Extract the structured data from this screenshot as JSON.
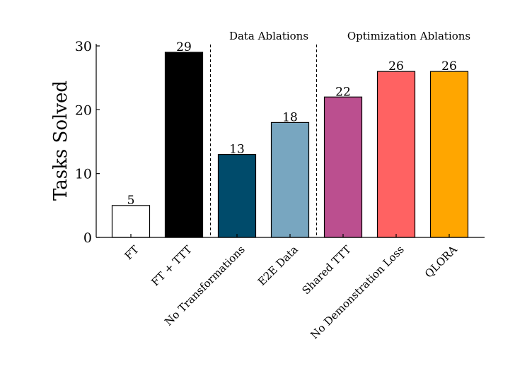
{
  "chart_data": {
    "type": "bar",
    "title": "",
    "xlabel": "",
    "ylabel": "Tasks Solved",
    "ylim": [
      0,
      30
    ],
    "yticks": [
      0,
      10,
      20,
      30
    ],
    "categories": [
      "FT",
      "FT + TTT",
      "No Transformations",
      "E2E Data",
      "Shared TTT",
      "No Demonstration Loss",
      "QLORA"
    ],
    "values": [
      5,
      29,
      13,
      18,
      22,
      26,
      26
    ],
    "colors": [
      "#ffffff",
      "#000000",
      "#004b6b",
      "#78a6c0",
      "#bb4f8f",
      "#ff6262",
      "#ffa600"
    ],
    "group_labels": [
      "Data Ablations",
      "Optimization Ablations"
    ],
    "group_separators_after_index": [
      1,
      3
    ]
  }
}
